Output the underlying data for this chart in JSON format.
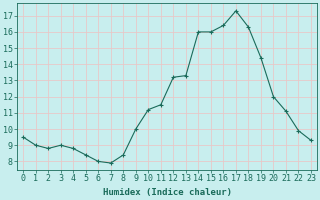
{
  "x": [
    0,
    1,
    2,
    3,
    4,
    5,
    6,
    7,
    8,
    9,
    10,
    11,
    12,
    13,
    14,
    15,
    16,
    17,
    18,
    19,
    20,
    21,
    22,
    23
  ],
  "y": [
    9.5,
    9.0,
    8.8,
    9.0,
    8.8,
    8.4,
    8.0,
    7.9,
    8.4,
    10.0,
    11.2,
    11.5,
    13.2,
    13.3,
    16.0,
    16.0,
    16.4,
    17.3,
    16.3,
    14.4,
    12.0,
    11.1,
    9.9,
    9.3
  ],
  "line_color": "#1a6b5a",
  "marker": "+",
  "bg_color": "#c8eeee",
  "grid_color": "#e8c8c8",
  "xlabel": "Humidex (Indice chaleur)",
  "ylim": [
    7.5,
    17.8
  ],
  "xlim": [
    -0.5,
    23.5
  ],
  "yticks": [
    8,
    9,
    10,
    11,
    12,
    13,
    14,
    15,
    16,
    17
  ],
  "xticks": [
    0,
    1,
    2,
    3,
    4,
    5,
    6,
    7,
    8,
    9,
    10,
    11,
    12,
    13,
    14,
    15,
    16,
    17,
    18,
    19,
    20,
    21,
    22,
    23
  ],
  "tick_color": "#1a6b5a",
  "label_fontsize": 6.5,
  "tick_fontsize": 6
}
